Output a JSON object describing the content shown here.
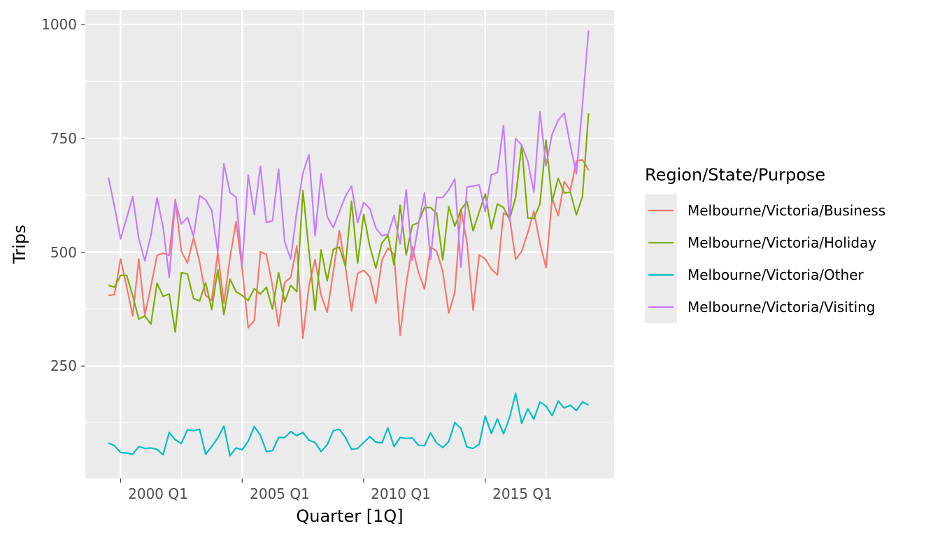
{
  "chart_data": {
    "type": "line",
    "xlabel": "Quarter [1Q]",
    "ylabel": "Trips",
    "x_tick_labels": [
      "2000 Q1",
      "2005 Q1",
      "2010 Q1",
      "2015 Q1"
    ],
    "y_tick_labels": [
      "250",
      "500",
      "750",
      "1000"
    ],
    "legend_title": "Region/State/Purpose",
    "legend_position": "right",
    "grid": true,
    "x_start": "1998 Q1",
    "x_end": "2017 Q4",
    "ylim": [
      0,
      1000
    ],
    "series": [
      {
        "name": "Melbourne/Victoria/Business",
        "color": "#F8766D",
        "values": [
          405,
          407,
          485,
          424,
          360,
          485,
          362,
          425,
          493,
          498,
          493,
          616,
          502,
          476,
          532,
          478,
          405,
          394,
          500,
          388,
          487,
          567,
          464,
          334,
          350,
          501,
          495,
          426,
          338,
          433,
          445,
          514,
          311,
          427,
          484,
          405,
          368,
          456,
          547,
          468,
          371,
          453,
          460,
          446,
          388,
          482,
          509,
          495,
          318,
          430,
          512,
          456,
          419,
          511,
          502,
          458,
          366,
          412,
          594,
          521,
          373,
          494,
          485,
          463,
          450,
          586,
          578,
          484,
          502,
          543,
          590,
          520,
          466,
          618,
          580,
          655,
          635,
          700,
          703,
          680
        ]
      },
      {
        "name": "Melbourne/Victoria/Holiday",
        "color": "#7CAE00",
        "values": [
          427,
          423,
          449,
          449,
          404,
          353,
          360,
          342,
          432,
          403,
          408,
          325,
          455,
          452,
          398,
          393,
          433,
          374,
          462,
          363,
          441,
          413,
          405,
          394,
          420,
          408,
          423,
          375,
          455,
          391,
          427,
          413,
          635,
          502,
          372,
          505,
          437,
          506,
          511,
          469,
          612,
          476,
          583,
          513,
          465,
          520,
          537,
          472,
          603,
          494,
          559,
          565,
          598,
          598,
          585,
          483,
          600,
          557,
          593,
          611,
          547,
          588,
          628,
          551,
          606,
          598,
          572,
          620,
          735,
          575,
          574,
          606,
          746,
          611,
          662,
          630,
          632,
          582,
          622,
          805
        ]
      },
      {
        "name": "Melbourne/Victoria/Other",
        "color": "#00BFC4",
        "values": [
          81,
          75,
          60,
          59,
          56,
          73,
          69,
          70,
          67,
          55,
          104,
          88,
          80,
          110,
          108,
          111,
          56,
          73,
          92,
          118,
          53,
          70,
          66,
          85,
          117,
          98,
          62,
          64,
          93,
          93,
          106,
          97,
          104,
          87,
          82,
          62,
          77,
          108,
          111,
          93,
          67,
          69,
          82,
          95,
          83,
          81,
          114,
          73,
          93,
          91,
          92,
          76,
          75,
          103,
          81,
          71,
          84,
          126,
          113,
          72,
          69,
          78,
          140,
          102,
          134,
          101,
          136,
          190,
          124,
          156,
          133,
          171,
          162,
          141,
          173,
          158,
          164,
          152,
          171,
          164
        ]
      },
      {
        "name": "Melbourne/Victoria/Visiting",
        "color": "#C77CFF",
        "values": [
          664,
          600,
          529,
          575,
          622,
          530,
          481,
          537,
          619,
          555,
          445,
          612,
          562,
          576,
          535,
          624,
          615,
          592,
          500,
          694,
          631,
          621,
          471,
          669,
          583,
          689,
          565,
          569,
          682,
          523,
          485,
          590,
          674,
          714,
          536,
          672,
          578,
          554,
          589,
          623,
          645,
          565,
          609,
          596,
          553,
          536,
          539,
          581,
          518,
          637,
          482,
          560,
          630,
          484,
          620,
          620,
          637,
          660,
          467,
          643,
          645,
          648,
          589,
          670,
          675,
          778,
          568,
          750,
          735,
          700,
          632,
          808,
          690,
          759,
          790,
          805,
          735,
          672,
          824,
          987
        ]
      }
    ]
  }
}
